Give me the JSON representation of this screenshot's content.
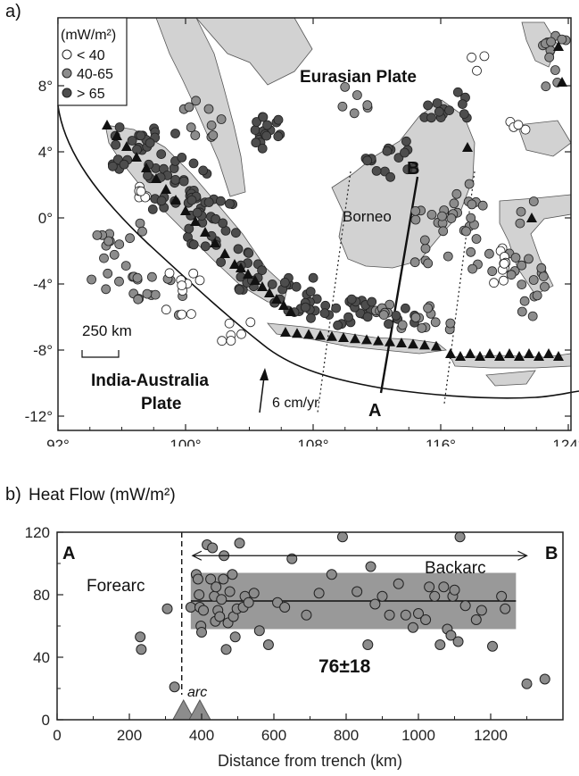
{
  "panels": {
    "a_label": "a)",
    "b_label": "b)",
    "b_title": "Heat Flow (mW/m²)"
  },
  "map": {
    "legend_title": "(mW/m²)",
    "legend_items": [
      {
        "label": "< 40",
        "color": "#ffffff"
      },
      {
        "label": "40-65",
        "color": "#8c8c8c"
      },
      {
        "label": "> 65",
        "color": "#4d4d4d"
      }
    ],
    "labels": {
      "eurasian": "Eurasian Plate",
      "india_australia_1": "India-Australia",
      "india_australia_2": "Plate",
      "borneo": "Borneo",
      "velocity": "6 cm/yr",
      "point_a": "A",
      "point_b": "B",
      "scale": "250 km"
    },
    "lon_ticks": [
      "92°",
      "100°",
      "108°",
      "116°",
      "124°"
    ],
    "lat_ticks": [
      "8°",
      "4°",
      "0°",
      "-4°",
      "-8°",
      "-12°"
    ],
    "colors": {
      "land": "#d2d2d2",
      "ocean": "#ffffff",
      "low": "#ffffff",
      "mid": "#8c8c8c",
      "high": "#4d4d4d"
    }
  },
  "chart_data": {
    "type": "scatter",
    "title": "Heat Flow (mW/m²)",
    "xlabel": "Distance from trench (km)",
    "ylabel": "",
    "xlim": [
      0,
      1400
    ],
    "ylim": [
      0,
      120
    ],
    "xticks": [
      0,
      200,
      400,
      600,
      800,
      1000,
      1200
    ],
    "yticks": [
      0,
      40,
      80,
      120
    ],
    "annotations": {
      "a": "A",
      "b": "B",
      "forearc": "Forearc",
      "backarc": "Backarc",
      "arc": "arc",
      "stat": "76±18"
    },
    "backarc_mean": 76,
    "backarc_sd": 18,
    "backarc_range_km": [
      370,
      1270
    ],
    "arc_trench_distance_km": 345,
    "arc_triangles_km": [
      350,
      395
    ],
    "points": [
      [
        230,
        53
      ],
      [
        233,
        45
      ],
      [
        305,
        71
      ],
      [
        325,
        21
      ],
      [
        370,
        72
      ],
      [
        385,
        93
      ],
      [
        390,
        90
      ],
      [
        393,
        80
      ],
      [
        395,
        72
      ],
      [
        398,
        60
      ],
      [
        400,
        56
      ],
      [
        405,
        70
      ],
      [
        415,
        112
      ],
      [
        425,
        90
      ],
      [
        430,
        110
      ],
      [
        435,
        79
      ],
      [
        438,
        63
      ],
      [
        440,
        85
      ],
      [
        445,
        70
      ],
      [
        450,
        66
      ],
      [
        455,
        77
      ],
      [
        460,
        90
      ],
      [
        462,
        105
      ],
      [
        468,
        45
      ],
      [
        473,
        62
      ],
      [
        478,
        82
      ],
      [
        485,
        93
      ],
      [
        488,
        66
      ],
      [
        493,
        53
      ],
      [
        498,
        71
      ],
      [
        505,
        113
      ],
      [
        515,
        72
      ],
      [
        520,
        79
      ],
      [
        530,
        75
      ],
      [
        545,
        81
      ],
      [
        560,
        57
      ],
      [
        585,
        48
      ],
      [
        610,
        75
      ],
      [
        630,
        72
      ],
      [
        650,
        103
      ],
      [
        690,
        67
      ],
      [
        725,
        81
      ],
      [
        760,
        93
      ],
      [
        790,
        117
      ],
      [
        830,
        82
      ],
      [
        860,
        48
      ],
      [
        868,
        98
      ],
      [
        880,
        74
      ],
      [
        900,
        79
      ],
      [
        920,
        67
      ],
      [
        945,
        87
      ],
      [
        965,
        67
      ],
      [
        985,
        59
      ],
      [
        1000,
        68
      ],
      [
        1020,
        64
      ],
      [
        1030,
        85
      ],
      [
        1045,
        79
      ],
      [
        1060,
        48
      ],
      [
        1070,
        85
      ],
      [
        1080,
        58
      ],
      [
        1090,
        54
      ],
      [
        1095,
        79
      ],
      [
        1100,
        83
      ],
      [
        1110,
        50
      ],
      [
        1115,
        117
      ],
      [
        1130,
        73
      ],
      [
        1160,
        64
      ],
      [
        1175,
        70
      ],
      [
        1205,
        47
      ],
      [
        1230,
        79
      ],
      [
        1240,
        71
      ],
      [
        1300,
        23
      ],
      [
        1350,
        26
      ]
    ]
  }
}
